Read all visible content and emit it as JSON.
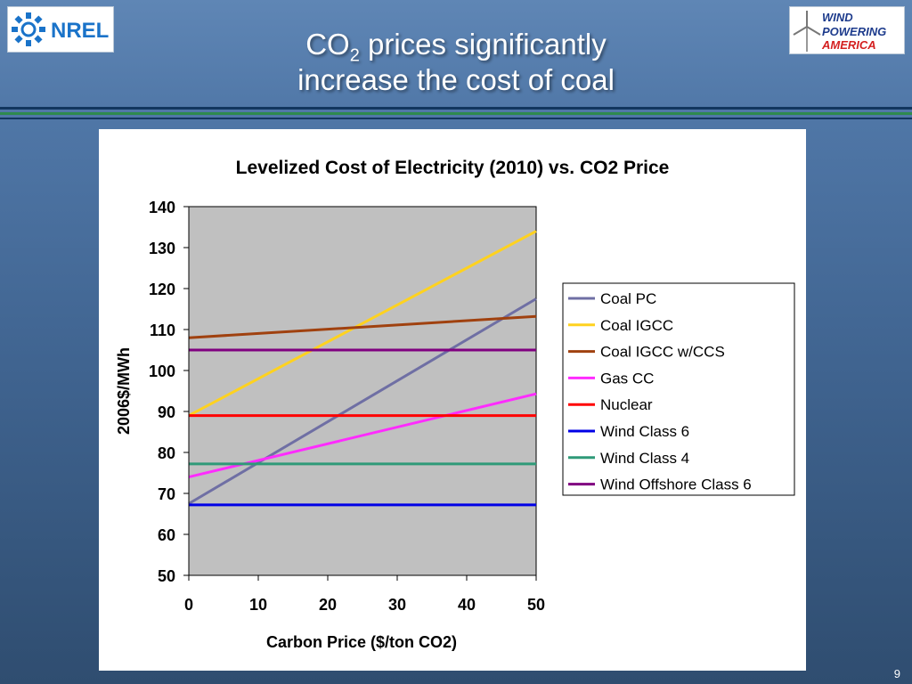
{
  "slide": {
    "title_prefix": "CO",
    "title_sub": "2",
    "title_line1_rest": " prices significantly",
    "title_line2": "increase the cost of coal",
    "page_number": "9"
  },
  "logos": {
    "nrel_text": "NREL",
    "wind_line1": "WIND",
    "wind_line2": "POWERING",
    "wind_line3": "AMERICA"
  },
  "chart_data": {
    "type": "line",
    "title": "Levelized Cost of Electricity (2010) vs. CO2 Price",
    "xlabel": "Carbon Price ($/ton CO2)",
    "ylabel": "2006$/MWh",
    "xlim": [
      0,
      50
    ],
    "ylim": [
      50,
      140
    ],
    "xticks": [
      0,
      10,
      20,
      30,
      40,
      50
    ],
    "yticks": [
      50,
      60,
      70,
      80,
      90,
      100,
      110,
      120,
      130,
      140
    ],
    "x": [
      0,
      50
    ],
    "grid": false,
    "legend_position": "right",
    "plot_background": "#c0c0c0",
    "series": [
      {
        "name": "Coal PC",
        "color": "#6f6fa4",
        "values": [
          67.5,
          117.5
        ]
      },
      {
        "name": "Coal IGCC",
        "color": "#ffd21f",
        "values": [
          89,
          134
        ]
      },
      {
        "name": "Coal IGCC w/CCS",
        "color": "#a0410f",
        "values": [
          108,
          113.2
        ]
      },
      {
        "name": "Gas CC",
        "color": "#ff2bff",
        "values": [
          74,
          94.3
        ]
      },
      {
        "name": "Nuclear",
        "color": "#ff0000",
        "values": [
          89,
          89
        ]
      },
      {
        "name": "Wind Class 6",
        "color": "#0000e6",
        "values": [
          67.2,
          67.2
        ]
      },
      {
        "name": "Wind Class 4",
        "color": "#2f9a78",
        "values": [
          77.2,
          77.2
        ]
      },
      {
        "name": "Wind Offshore Class 6",
        "color": "#800080",
        "values": [
          105,
          105
        ]
      }
    ]
  }
}
